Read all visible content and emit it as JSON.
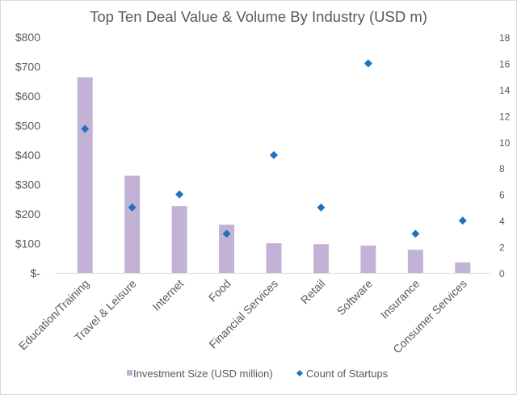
{
  "chart_data": {
    "type": "bar",
    "title": "Top Ten Deal Value & Volume By Industry (USD m)",
    "xlabel": "",
    "ylabel": "",
    "categories": [
      "Education/Training",
      "Travel & Leisure",
      "Internet",
      "Food",
      "Financial Services",
      "Retail",
      "Software",
      "Insurance",
      "Consumer Services"
    ],
    "series": [
      {
        "name": "Investment Size (USD million)",
        "type": "bar",
        "axis": "left",
        "color": "#c2b3d6",
        "values": [
          664,
          330,
          227,
          164,
          101,
          98,
          93,
          79,
          36
        ]
      },
      {
        "name": "Count of Startups",
        "type": "scatter",
        "marker": "diamond",
        "axis": "right",
        "color": "#1f72bd",
        "values": [
          11,
          5,
          6,
          3,
          9,
          5,
          16,
          3,
          4
        ]
      }
    ],
    "y_left": {
      "range": [
        0,
        800
      ],
      "ticks": [
        0,
        100,
        200,
        300,
        400,
        500,
        600,
        700,
        800
      ],
      "tick_labels": [
        "$-",
        "$100",
        "$200",
        "$300",
        "$400",
        "$500",
        "$600",
        "$700",
        "$800"
      ]
    },
    "y_right": {
      "range": [
        0,
        18
      ],
      "ticks": [
        0,
        2,
        4,
        6,
        8,
        10,
        12,
        14,
        16,
        18
      ],
      "tick_labels": [
        "0",
        "2",
        "4",
        "6",
        "8",
        "10",
        "12",
        "14",
        "16",
        "18"
      ]
    },
    "grid": false,
    "legend": {
      "position": "bottom",
      "entries": [
        "Investment Size (USD million)",
        "Count of Startups"
      ]
    }
  }
}
